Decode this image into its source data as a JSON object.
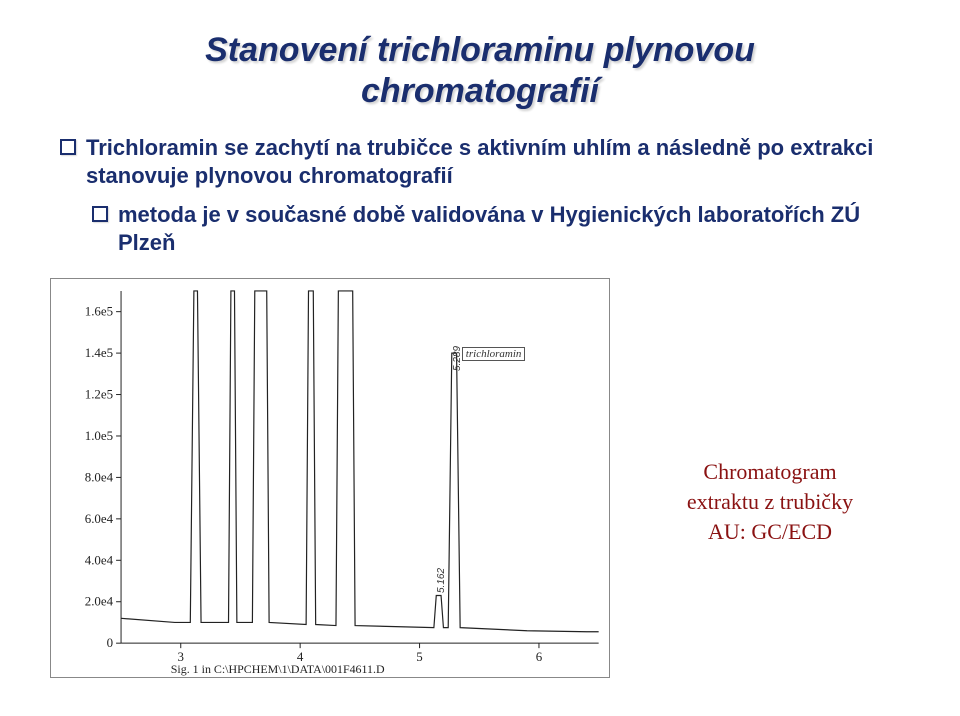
{
  "title_line1": "Stanovení trichloraminu plynovou",
  "title_line2": "chromatografií",
  "bullets": [
    "Trichloramin se zachytí na trubičce s aktivním uhlím a následně po extrakci stanovuje plynovou chromatografií",
    "metoda je v současné době validována v Hygienických laboratořích ZÚ Plzeň"
  ],
  "side_caption": {
    "line1": "Chromatogram",
    "line2": "extraktu z trubičky",
    "line3": "AU: GC/ECD"
  },
  "chromatogram": {
    "background": "#ffffff",
    "axis_color": "#222222",
    "trace_color": "#222222",
    "trace_width": 1.2,
    "ylabel_vals": [
      "1.6e5",
      "1.4e5",
      "1.2e5",
      "1.0e5",
      "8.0e4",
      "6.0e4",
      "4.0e4",
      "2.0e4",
      "0"
    ],
    "xlabel_vals": [
      "3",
      "4",
      "5",
      "6"
    ],
    "xlim": [
      2.5,
      6.5
    ],
    "ylim": [
      0,
      170000
    ],
    "footer": "Sig. 1 in C:\\HPCHEM\\1\\DATA\\001F4611.D",
    "peak_label": "trichloramin",
    "peak_rt": "5.289",
    "minor_rt": "5.162",
    "trace": [
      [
        2.5,
        12000
      ],
      [
        2.95,
        10000
      ],
      [
        3.08,
        10000
      ],
      [
        3.11,
        170000
      ],
      [
        3.14,
        170000
      ],
      [
        3.17,
        10000
      ],
      [
        3.4,
        10000
      ],
      [
        3.42,
        170000
      ],
      [
        3.45,
        170000
      ],
      [
        3.47,
        10000
      ],
      [
        3.6,
        10000
      ],
      [
        3.62,
        170000
      ],
      [
        3.72,
        170000
      ],
      [
        3.74,
        10000
      ],
      [
        4.05,
        9000
      ],
      [
        4.07,
        170000
      ],
      [
        4.11,
        170000
      ],
      [
        4.13,
        9000
      ],
      [
        4.3,
        8500
      ],
      [
        4.32,
        170000
      ],
      [
        4.44,
        170000
      ],
      [
        4.46,
        8500
      ],
      [
        4.8,
        8000
      ],
      [
        5.12,
        7500
      ],
      [
        5.14,
        23000
      ],
      [
        5.18,
        23000
      ],
      [
        5.2,
        7500
      ],
      [
        5.24,
        7500
      ],
      [
        5.27,
        140000
      ],
      [
        5.31,
        140000
      ],
      [
        5.34,
        7500
      ],
      [
        5.9,
        6000
      ],
      [
        6.4,
        5500
      ],
      [
        6.5,
        5500
      ]
    ]
  },
  "colors": {
    "title": "#1a2e6e",
    "body_text": "#1a2e6e",
    "caption": "#8a1212",
    "slide_bg": "#ffffff"
  },
  "fontsizes": {
    "title": 34,
    "bullet": 22,
    "caption": 22,
    "axis_tick": 12
  }
}
